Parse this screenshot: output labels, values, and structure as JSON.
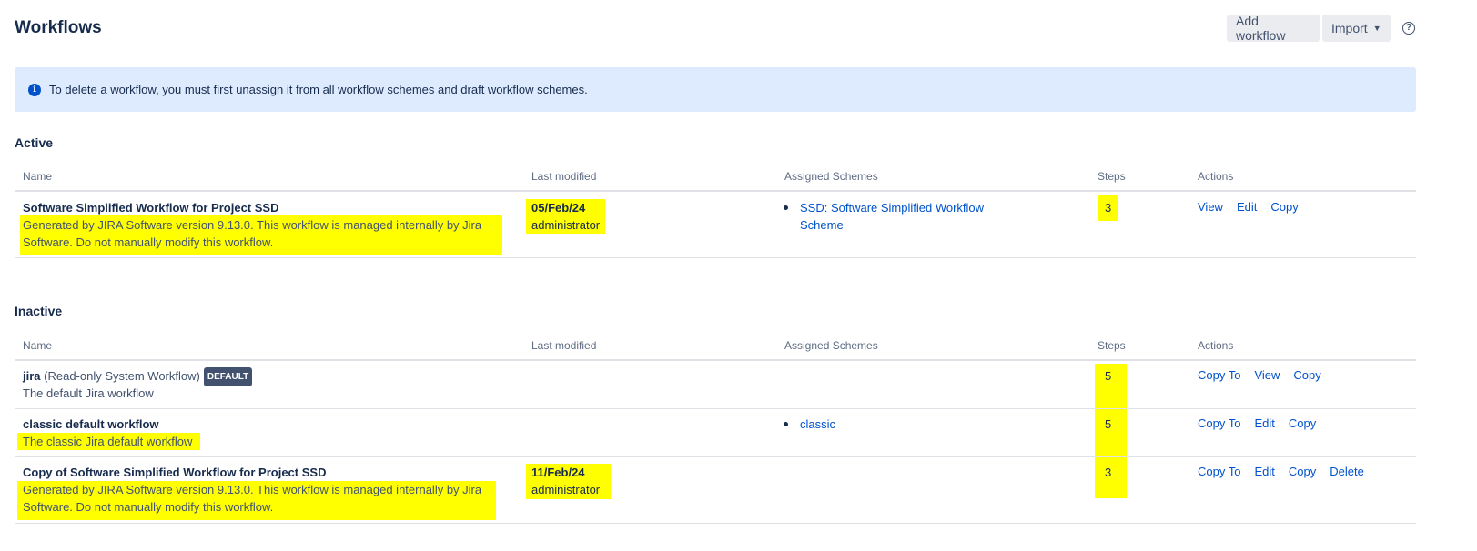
{
  "header": {
    "title": "Workflows",
    "add_workflow": "Add workflow",
    "import": "Import",
    "help_icon": "question-circle-icon"
  },
  "banner": {
    "icon": "info-icon",
    "text": "To delete a workflow, you must first unassign it from all workflow schemes and draft workflow schemes."
  },
  "columns": {
    "name": "Name",
    "last_modified": "Last modified",
    "assigned_schemes": "Assigned Schemes",
    "steps": "Steps",
    "actions": "Actions"
  },
  "highlight_color": "#ffff00",
  "active": {
    "title": "Active",
    "rows": [
      {
        "name": "Software Simplified Workflow for Project SSD",
        "desc_line1": "Generated by JIRA Software version 9.13.0. This workflow is managed internally by Jira",
        "desc_line2": "Software. Do not manually modify this workflow.",
        "date": "05/Feb/24",
        "user": "administrator",
        "scheme_line1": "SSD: Software Simplified Workflow",
        "scheme_line2": "Scheme",
        "steps": "3",
        "actions": [
          "View",
          "Edit",
          "Copy"
        ]
      }
    ]
  },
  "inactive": {
    "title": "Inactive",
    "rows": [
      {
        "name": "jira",
        "name_suffix": "(Read-only System Workflow)",
        "badge": "DEFAULT",
        "desc": "The default Jira workflow",
        "steps": "5",
        "actions": [
          "Copy To",
          "View",
          "Copy"
        ]
      },
      {
        "name": "classic default workflow",
        "desc": "The classic Jira default workflow",
        "scheme": "classic",
        "steps": "5",
        "actions": [
          "Copy To",
          "Edit",
          "Copy"
        ]
      },
      {
        "name": "Copy of Software Simplified Workflow for Project SSD",
        "desc_line1": "Generated by JIRA Software version 9.13.0. This workflow is managed internally by Jira",
        "desc_line2": "Software. Do not manually modify this workflow.",
        "date": "11/Feb/24",
        "user": "administrator",
        "steps": "3",
        "actions": [
          "Copy To",
          "Edit",
          "Copy",
          "Delete"
        ]
      }
    ]
  }
}
